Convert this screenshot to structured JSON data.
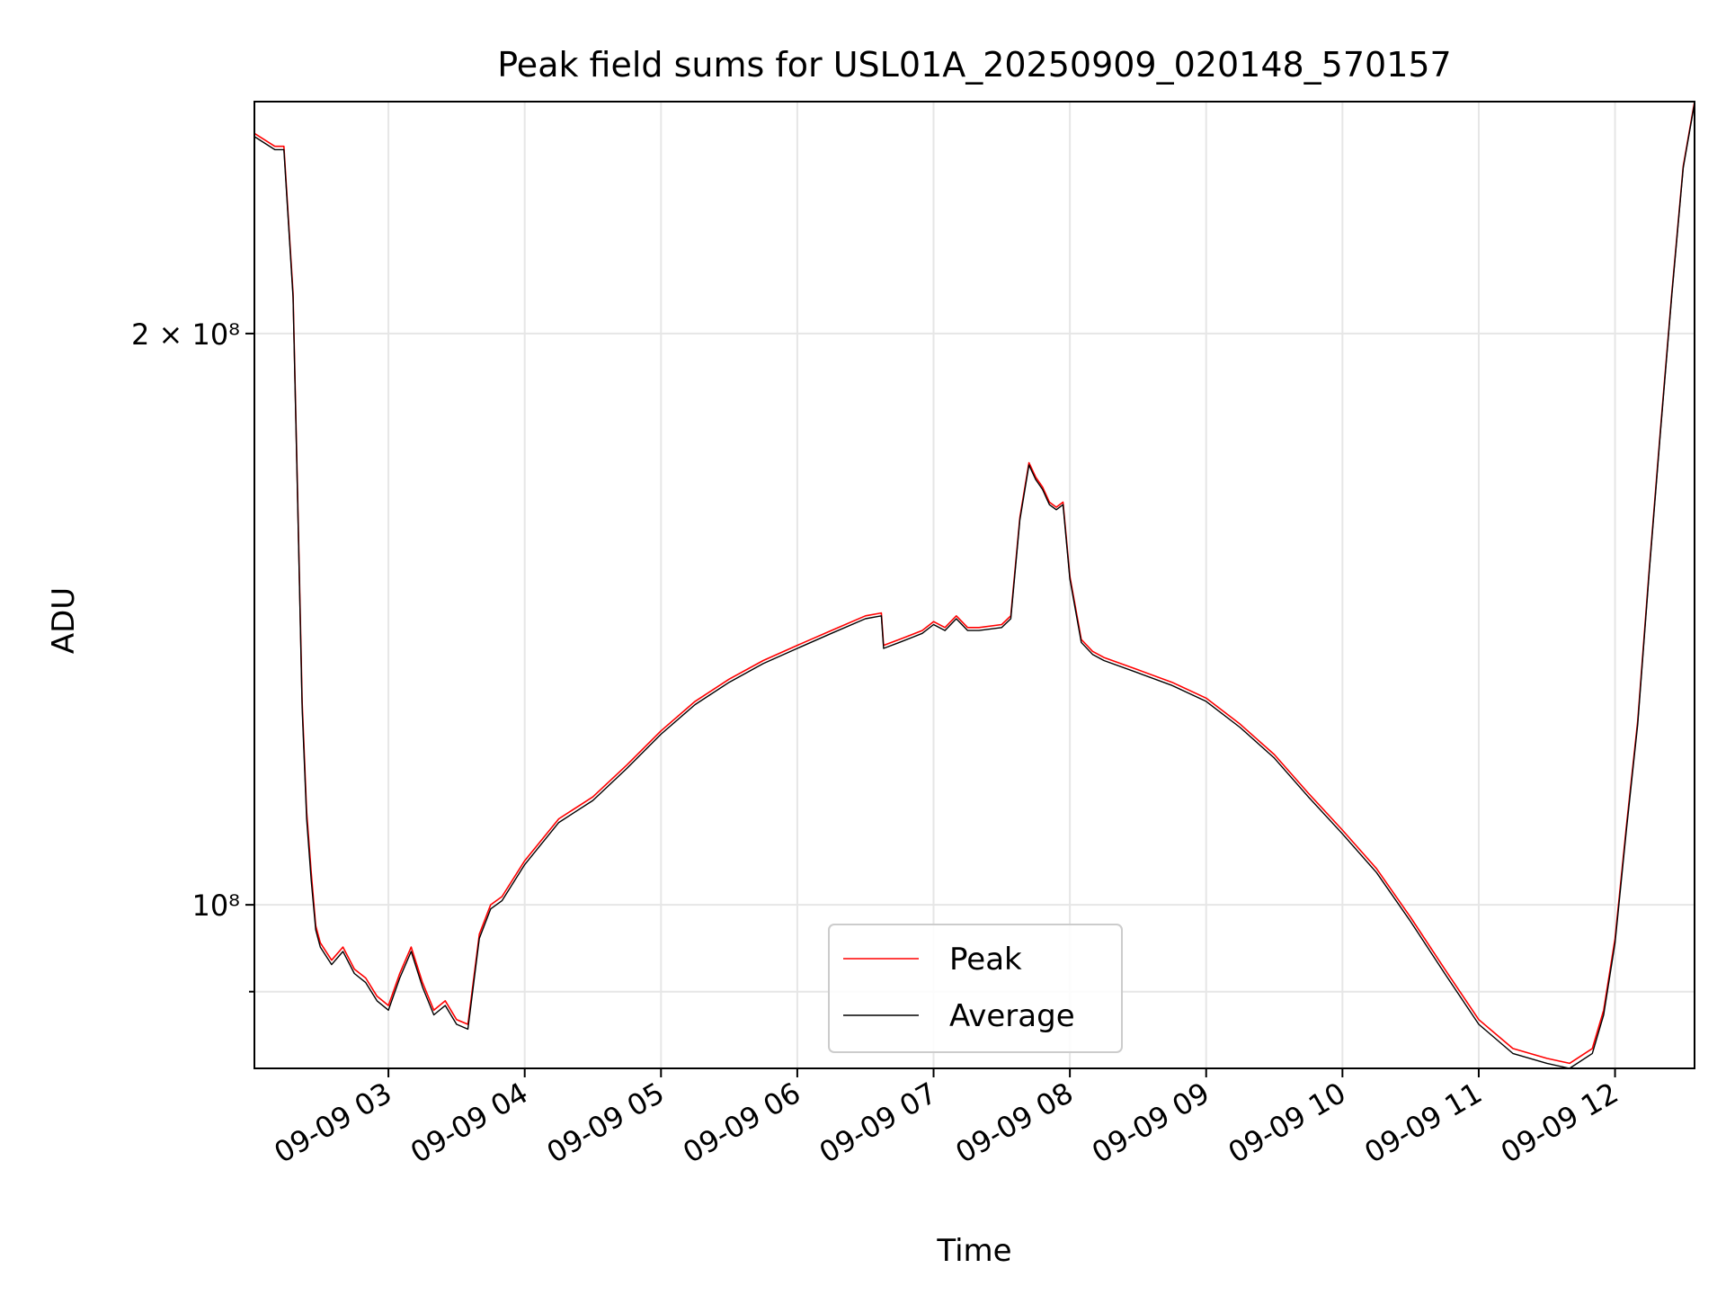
{
  "chart_data": {
    "type": "line",
    "title": "Peak field sums for USL01A_20250909_020148_570157",
    "xlabel": "Time",
    "ylabel": "ADU",
    "yscale": "log",
    "xlim": [
      "2025-09-09T02:01",
      "2025-09-09T12:35"
    ],
    "ylim": [
      82000000,
      265000000
    ],
    "grid": true,
    "legend_position": "bottom-center",
    "x_ticks": [
      "09-09 03",
      "09-09 04",
      "09-09 05",
      "09-09 06",
      "09-09 07",
      "09-09 08",
      "09-09 09",
      "09-09 10",
      "09-09 11",
      "09-09 12"
    ],
    "y_ticks": [
      {
        "value": 200000000,
        "label": "2 × 10⁸"
      },
      {
        "value": 100000000,
        "label": "10⁸"
      },
      {
        "value": 90000000,
        "label": ""
      }
    ],
    "x": [
      "02:01",
      "02:10",
      "02:11",
      "02:14",
      "02:18",
      "02:20",
      "02:22",
      "02:24",
      "02:26",
      "02:28",
      "02:30",
      "02:35",
      "02:40",
      "02:45",
      "02:50",
      "02:55",
      "03:00",
      "03:05",
      "03:10",
      "03:15",
      "03:20",
      "03:25",
      "03:30",
      "03:35",
      "03:40",
      "03:45",
      "03:50",
      "04:00",
      "04:15",
      "04:30",
      "04:45",
      "05:00",
      "05:15",
      "05:30",
      "05:45",
      "06:00",
      "06:15",
      "06:30",
      "06:37",
      "06:38",
      "06:45",
      "06:55",
      "07:00",
      "07:05",
      "07:10",
      "07:15",
      "07:20",
      "07:30",
      "07:34",
      "07:38",
      "07:42",
      "07:45",
      "07:48",
      "07:51",
      "07:54",
      "07:57",
      "08:00",
      "08:05",
      "08:10",
      "08:15",
      "08:30",
      "08:45",
      "09:00",
      "09:15",
      "09:30",
      "09:45",
      "10:00",
      "10:15",
      "10:30",
      "10:45",
      "11:00",
      "11:15",
      "11:30",
      "11:40",
      "11:50",
      "11:55",
      "12:00",
      "12:05",
      "12:10",
      "12:15",
      "12:20",
      "12:25",
      "12:30",
      "12:35"
    ],
    "series": [
      {
        "name": "Peak",
        "color": "#ff0000",
        "values": [
          255000000,
          251000000,
          251000000,
          251000000,
          210000000,
          165000000,
          128000000,
          112000000,
          104000000,
          97500000,
          95500000,
          93500000,
          95000000,
          92500000,
          91500000,
          89500000,
          88500000,
          92000000,
          95000000,
          91000000,
          88000000,
          89000000,
          87000000,
          86500000,
          96500000,
          100000000,
          101000000,
          105500000,
          111000000,
          114000000,
          118500000,
          123500000,
          128000000,
          131500000,
          134500000,
          137000000,
          139500000,
          142000000,
          142500000,
          137000000,
          138000000,
          139500000,
          141000000,
          140000000,
          142000000,
          140000000,
          140000000,
          140500000,
          142000000,
          160000000,
          171000000,
          168000000,
          166000000,
          163000000,
          162000000,
          163000000,
          149000000,
          138000000,
          136000000,
          135000000,
          133000000,
          131000000,
          128500000,
          124500000,
          120000000,
          114500000,
          109500000,
          104500000,
          98500000,
          92500000,
          87000000,
          84000000,
          83000000,
          82500000,
          84000000,
          88000000,
          96000000,
          110000000,
          125000000,
          150000000,
          178000000,
          210000000,
          245000000,
          265000000
        ]
      },
      {
        "name": "Average",
        "color": "#000000",
        "values": [
          254000000,
          250000000,
          250000000,
          250000000,
          209000000,
          164000000,
          127000000,
          111000000,
          103000000,
          97000000,
          95000000,
          93000000,
          94500000,
          92000000,
          91000000,
          89000000,
          88000000,
          91500000,
          94500000,
          90500000,
          87500000,
          88500000,
          86500000,
          86000000,
          96000000,
          99500000,
          100500000,
          105000000,
          110500000,
          113500000,
          118000000,
          123000000,
          127500000,
          131000000,
          134000000,
          136500000,
          139000000,
          141500000,
          142000000,
          136500000,
          137500000,
          139000000,
          140500000,
          139500000,
          141500000,
          139500000,
          139500000,
          140000000,
          141500000,
          159500000,
          170500000,
          167500000,
          165500000,
          162500000,
          161500000,
          162500000,
          148500000,
          137500000,
          135500000,
          134500000,
          132500000,
          130500000,
          128000000,
          124000000,
          119500000,
          114000000,
          109000000,
          104000000,
          98000000,
          92000000,
          86500000,
          83500000,
          82500000,
          82000000,
          83500000,
          87500000,
          95500000,
          109500000,
          124500000,
          149500000,
          177500000,
          209500000,
          244500000,
          264500000
        ]
      }
    ]
  }
}
